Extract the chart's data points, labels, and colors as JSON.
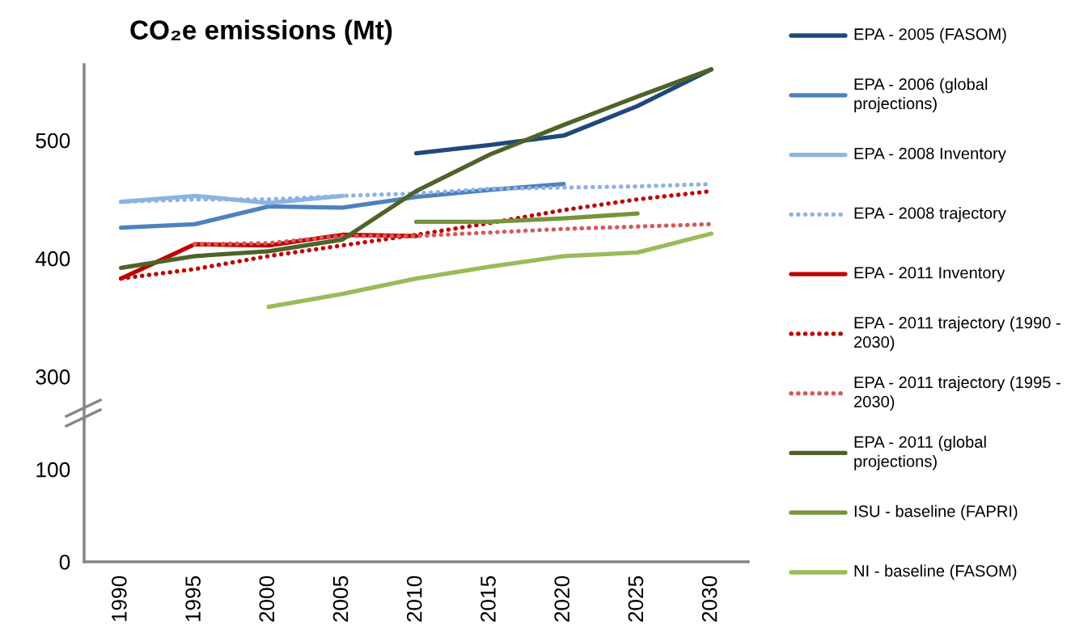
{
  "chart_data": [
    {
      "type": "line",
      "title": "CO₂e emissions (Mt)",
      "categories": [
        "1990",
        "1995",
        "2000",
        "2005",
        "2010",
        "2015",
        "2020",
        "2025",
        "2030"
      ],
      "ylim": [
        263,
        564
      ],
      "yticks": [
        300,
        400,
        500
      ],
      "tick_labels": "y",
      "grid": false,
      "legend": "right",
      "marker": "none",
      "series": [
        {
          "name": "EPA - 2005 (FASOM)",
          "color": "#1f497d",
          "line_style": "solid",
          "values": [
            null,
            null,
            null,
            null,
            489,
            496,
            504,
            529,
            560
          ]
        },
        {
          "name": "EPA - 2006 (global projections)",
          "color": "#4f81bd",
          "line_style": "solid",
          "values": [
            426,
            429,
            444,
            443,
            452,
            458,
            463,
            null,
            null
          ]
        },
        {
          "name": "EPA - 2008 Inventory",
          "color": "#8db3e2",
          "line_style": "solid",
          "values": [
            448,
            453,
            447,
            453,
            null,
            null,
            null,
            null,
            null
          ]
        },
        {
          "name": "EPA - 2008 trajectory",
          "color": "#8db3e2",
          "line_style": "dotted",
          "values": [
            448,
            450,
            450,
            453,
            455,
            459,
            460,
            461,
            463
          ]
        },
        {
          "name": "EPA - 2011 Inventory",
          "color": "#c00000",
          "line_style": "solid",
          "values": [
            383,
            412,
            411,
            420,
            419,
            null,
            null,
            null,
            null
          ]
        },
        {
          "name": "EPA - 2011 trajectory (1990 - 2030)",
          "color": "#c00000",
          "line_style": "dotted",
          "values": [
            383,
            391,
            402,
            411,
            420,
            430,
            441,
            450,
            457
          ]
        },
        {
          "name": "EPA - 2011 trajectory (1995 - 2030)",
          "color": "#d95757",
          "line_style": "dotted",
          "values": [
            null,
            412,
            413,
            419,
            419,
            422,
            425,
            427,
            429
          ]
        },
        {
          "name": "EPA - 2011 (global projections)",
          "color": "#4f6228",
          "line_style": "solid",
          "values": [
            392,
            402,
            406,
            416,
            457,
            488,
            513,
            537,
            560
          ]
        },
        {
          "name": "ISU - baseline (FAPRI)",
          "color": "#77933c",
          "line_style": "solid",
          "values": [
            null,
            null,
            null,
            null,
            431,
            431,
            434,
            438,
            null
          ]
        },
        {
          "name": "NI - baseline (FASOM)",
          "color": "#9bbb59",
          "line_style": "solid",
          "values": [
            null,
            null,
            359,
            370,
            383,
            393,
            402,
            405,
            421
          ]
        }
      ]
    },
    {
      "type": "line",
      "categories": [
        "1990",
        "1995",
        "2000",
        "2005",
        "2010",
        "2015",
        "2020",
        "2025",
        "2030"
      ],
      "ylim": [
        0,
        153
      ],
      "yticks": [
        0,
        100
      ],
      "grid": false,
      "legend": false
    }
  ]
}
